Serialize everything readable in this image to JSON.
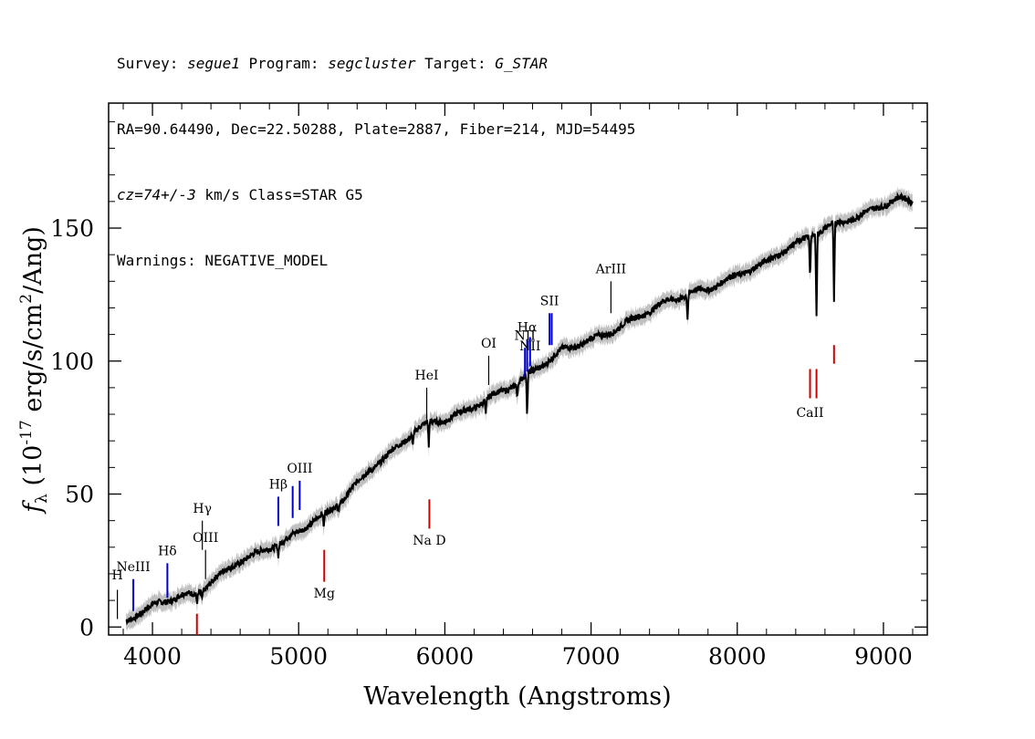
{
  "header": {
    "survey_label": "Survey: ",
    "survey": "segue1",
    "program_label": " Program: ",
    "program": "segcluster",
    "target_label": " Target: ",
    "target": "G_STAR",
    "line2": "RA=90.64490, Dec=22.50288, Plate=2887, Fiber=214, MJD=54495",
    "cz": "cz=74+/-3",
    "line3_rest": " km/s Class=STAR G5",
    "line4": "Warnings: NEGATIVE_MODEL"
  },
  "chart_data": {
    "type": "line",
    "title": "",
    "xlabel": "Wavelength (Angstroms)",
    "ylabel": "f_λ (10^-17 erg/s/cm^2/Ang)",
    "xlim": [
      3700,
      9300
    ],
    "ylim": [
      -3,
      197
    ],
    "x_ticks": [
      4000,
      5000,
      6000,
      7000,
      8000,
      9000
    ],
    "y_ticks": [
      0,
      50,
      100,
      150
    ],
    "x_ticklabels": [
      "4000",
      "5000",
      "6000",
      "7000",
      "8000",
      "9000"
    ],
    "y_ticklabels": [
      "0",
      "50",
      "100",
      "150"
    ],
    "series": [
      {
        "role": "flux",
        "color": "#000000",
        "x": [
          3820,
          3900,
          4000,
          4100,
          4200,
          4300,
          4400,
          4500,
          4600,
          4700,
          4800,
          4900,
          5000,
          5100,
          5200,
          5300,
          5400,
          5500,
          5600,
          5700,
          5800,
          5900,
          6000,
          6100,
          6200,
          6300,
          6400,
          6500,
          6600,
          6700,
          6800,
          6900,
          7000,
          7100,
          7200,
          7300,
          7400,
          7500,
          7600,
          7700,
          7800,
          7900,
          8000,
          8100,
          8200,
          8300,
          8400,
          8500,
          8600,
          8700,
          8800,
          8900,
          9000,
          9100,
          9200
        ],
        "y": [
          2,
          5,
          8,
          10,
          12,
          12,
          17,
          21,
          25,
          27,
          30,
          32,
          36,
          40,
          43,
          48,
          54,
          60,
          64,
          69,
          74,
          77,
          78,
          80,
          83,
          86,
          89,
          92,
          96,
          100,
          104,
          106,
          108,
          110,
          113,
          116,
          119,
          122,
          124,
          126,
          127,
          130,
          132,
          135,
          137,
          141,
          144,
          147,
          150,
          152,
          154,
          156,
          159,
          161,
          160
        ]
      },
      {
        "role": "model-error-band",
        "color": "#c0c0c0",
        "band_halfwidth": 2.5
      }
    ],
    "absorption_features": [
      {
        "x": 4305,
        "depth": 3
      },
      {
        "x": 4340,
        "depth": 3
      },
      {
        "x": 4861,
        "depth": 4
      },
      {
        "x": 5172,
        "depth": 6
      },
      {
        "x": 5270,
        "depth": 3
      },
      {
        "x": 5890,
        "depth": 9
      },
      {
        "x": 5780,
        "depth": 4
      },
      {
        "x": 6280,
        "depth": 6
      },
      {
        "x": 6495,
        "depth": 6
      },
      {
        "x": 6563,
        "depth": 16
      },
      {
        "x": 7660,
        "depth": 9
      },
      {
        "x": 8498,
        "depth": 15
      },
      {
        "x": 8542,
        "depth": 31
      },
      {
        "x": 8662,
        "depth": 30
      }
    ],
    "line_markers": [
      {
        "label": "H",
        "x": 3760,
        "color": "#000000",
        "y1": 3,
        "y2": 14,
        "label_y": 18
      },
      {
        "label": "NeIII",
        "x": 3869,
        "color": "#0000cc",
        "y1": 6,
        "y2": 18,
        "label_y": 21
      },
      {
        "label": "Hδ",
        "x": 4102,
        "color": "#0000cc",
        "y1": 11,
        "y2": 24,
        "label_y": 27
      },
      {
        "label": "Hγ",
        "x": 4341,
        "color": "#000000",
        "y1": 29,
        "y2": 40,
        "label_y": 43
      },
      {
        "label": "OIII",
        "x": 4363,
        "color": "#000000",
        "y1": 18,
        "y2": 29,
        "label_y": 32
      },
      {
        "label": "Hβ",
        "x": 4861,
        "color": "#0000cc",
        "y1": 38,
        "y2": 49,
        "label_y": 52
      },
      {
        "label": "OIII",
        "x": 4959,
        "color": "#0000cc",
        "y1": 41,
        "y2": 53,
        "label_y": -1
      },
      {
        "label": "OIII",
        "x": 5007,
        "color": "#0000cc",
        "y1": 44,
        "y2": 55,
        "label_y": 58
      },
      {
        "label": "HeI",
        "x": 5876,
        "color": "#000000",
        "y1": 78,
        "y2": 90,
        "label_y": 93
      },
      {
        "label": "OI",
        "x": 6300,
        "color": "#000000",
        "y1": 91,
        "y2": 102,
        "label_y": 105
      },
      {
        "label": "NII",
        "x": 6548,
        "color": "#0000cc",
        "y1": 94,
        "y2": 105,
        "label_y": 108
      },
      {
        "label": "Hα",
        "x": 6563,
        "color": "#0000cc",
        "y1": 96,
        "y2": 108,
        "label_y": 111
      },
      {
        "label": "NII",
        "x": 6583,
        "color": "#0000cc",
        "y1": 98,
        "y2": 109,
        "label_y": 104
      },
      {
        "label": "SII",
        "x": 6716,
        "color": "#0000cc",
        "y1": 106,
        "y2": 118,
        "label_y": 121
      },
      {
        "label": "",
        "x": 6731,
        "color": "#0000cc",
        "y1": 106,
        "y2": 118,
        "label_y": -1
      },
      {
        "label": "ArIII",
        "x": 7136,
        "color": "#000000",
        "y1": 118,
        "y2": 130,
        "label_y": 133
      },
      {
        "label": "",
        "x": 4304,
        "color": "#cc0000",
        "y1": -3,
        "y2": 5,
        "label_y": -1
      },
      {
        "label": "Mg",
        "x": 5175,
        "color": "#cc0000",
        "y1": 17,
        "y2": 29,
        "label_y": 11
      },
      {
        "label": "Na D",
        "x": 5894,
        "color": "#cc0000",
        "y1": 37,
        "y2": 48,
        "label_y": 31
      },
      {
        "label": "CaII",
        "x": 8498,
        "color": "#cc0000",
        "y1": 86,
        "y2": 97,
        "label_y": 79
      },
      {
        "label": "",
        "x": 8542,
        "color": "#cc0000",
        "y1": 86,
        "y2": 97,
        "label_y": -1
      },
      {
        "label": "",
        "x": 8662,
        "color": "#cc0000",
        "y1": 99,
        "y2": 106,
        "label_y": -1
      }
    ],
    "grid": false,
    "legend": "none"
  }
}
